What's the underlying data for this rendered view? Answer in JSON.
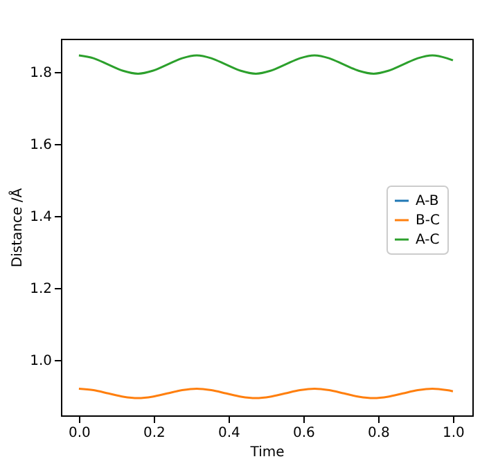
{
  "chart_data": {
    "type": "line",
    "xlabel": "Time",
    "ylabel": "Distance /Å",
    "x": [
      0,
      0.039,
      0.079,
      0.118,
      0.158,
      0.197,
      0.236,
      0.276,
      0.315,
      0.354,
      0.394,
      0.433,
      0.473,
      0.512,
      0.551,
      0.591,
      0.63,
      0.669,
      0.709,
      0.748,
      0.788,
      0.827,
      0.866,
      0.906,
      0.945,
      0.984,
      1.0
    ],
    "series": [
      {
        "name": "A-B",
        "color": "#1f77b4",
        "values": [
          null,
          null,
          null,
          null,
          null,
          null,
          null,
          null,
          null,
          null,
          null,
          null,
          null,
          null,
          null,
          null,
          null,
          null,
          null,
          null,
          null,
          null,
          null,
          null,
          null,
          null,
          null
        ]
      },
      {
        "name": "B-C",
        "color": "#ff7f0e",
        "values": [
          0.92,
          0.916,
          0.907,
          0.898,
          0.894,
          0.898,
          0.907,
          0.916,
          0.92,
          0.916,
          0.907,
          0.898,
          0.894,
          0.898,
          0.907,
          0.916,
          0.92,
          0.916,
          0.907,
          0.898,
          0.894,
          0.898,
          0.907,
          0.916,
          0.92,
          0.916,
          0.913
        ]
      },
      {
        "name": "A-C",
        "color": "#2ca02c",
        "values": [
          1.846,
          1.838,
          1.82,
          1.803,
          1.795,
          1.803,
          1.82,
          1.838,
          1.846,
          1.838,
          1.82,
          1.803,
          1.795,
          1.803,
          1.82,
          1.838,
          1.846,
          1.838,
          1.82,
          1.803,
          1.795,
          1.803,
          1.82,
          1.838,
          1.846,
          1.838,
          1.832
        ]
      }
    ],
    "xlim": [
      -0.048,
      1.052
    ],
    "ylim": [
      0.846,
      1.892
    ],
    "xticks": [
      {
        "value": 0,
        "label": "0.0"
      },
      0.2,
      0.4,
      0.6,
      0.8,
      {
        "value": 1,
        "label": "1.0"
      }
    ],
    "yticks": [
      {
        "value": 1,
        "label": "1.0"
      },
      1.2,
      1.4,
      1.6,
      1.8
    ],
    "legend": "right",
    "grid": false,
    "line_style": "solid",
    "marker": "none"
  }
}
